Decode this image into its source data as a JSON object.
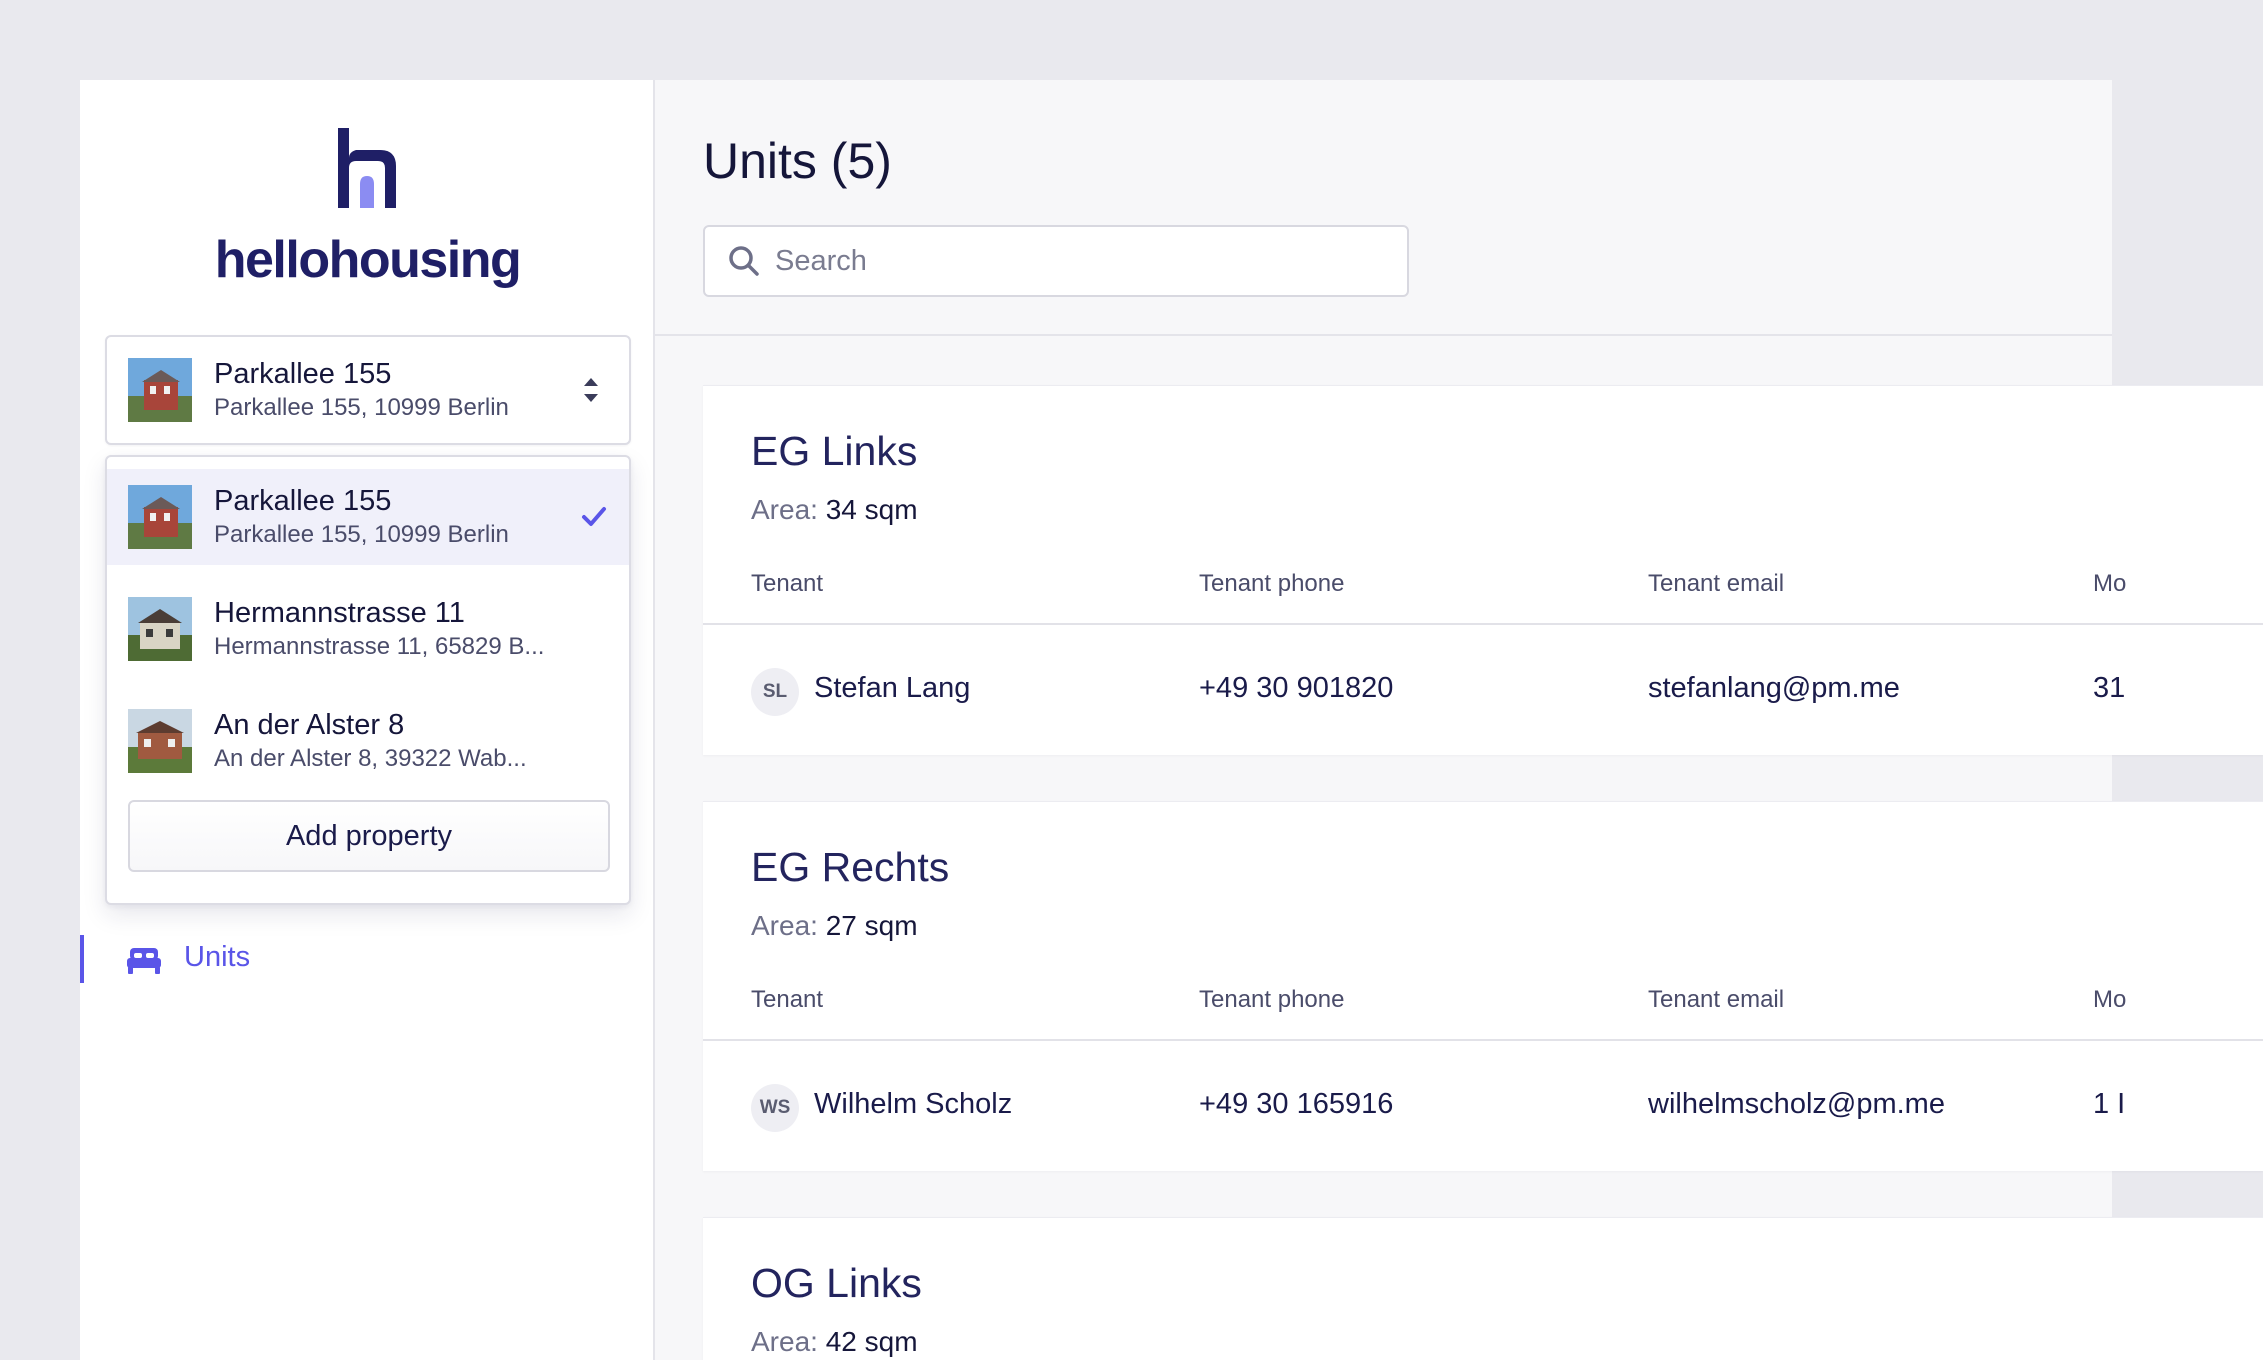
{
  "brand": {
    "name": "hellohousing",
    "color": "#1f1f66",
    "accent": "#8b8cf2"
  },
  "property_selector": {
    "name": "Parkallee 155",
    "address": "Parkallee 155, 10999 Berlin"
  },
  "properties": [
    {
      "name": "Parkallee 155",
      "address": "Parkallee 155, 10999 Berlin",
      "selected": true
    },
    {
      "name": "Hermannstrasse 11",
      "address": "Hermannstrasse 11, 65829 B...",
      "selected": false
    },
    {
      "name": "An der Alster 8",
      "address": "An der Alster 8, 39322 Wab...",
      "selected": false
    }
  ],
  "add_property_label": "Add property",
  "nav": {
    "units_label": "Units",
    "active_color": "#5a55e8"
  },
  "main": {
    "title": "Units (5)",
    "search_placeholder": "Search"
  },
  "columns": {
    "tenant": "Tenant",
    "phone": "Tenant phone",
    "email": "Tenant email",
    "fourth": "Mo"
  },
  "units": [
    {
      "name": "EG Links",
      "area_label": "Area:",
      "area": "34 sqm",
      "tenant": {
        "initials": "SL",
        "name": "Stefan Lang",
        "phone": "+49 30 901820",
        "email": "stefanlang@pm.me",
        "fourth": "31"
      }
    },
    {
      "name": "EG Rechts",
      "area_label": "Area:",
      "area": "27 sqm",
      "tenant": {
        "initials": "WS",
        "name": "Wilhelm Scholz",
        "phone": "+49 30 165916",
        "email": "wilhelmscholz@pm.me",
        "fourth": "1 I"
      }
    },
    {
      "name": "OG Links",
      "area_label": "Area:",
      "area": "42 sqm"
    }
  ]
}
